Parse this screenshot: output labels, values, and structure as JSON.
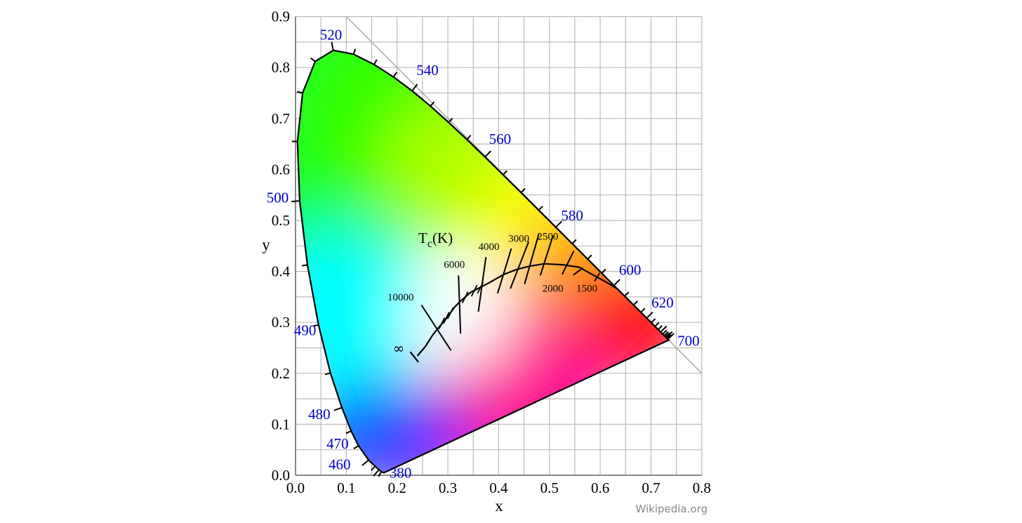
{
  "diagram": {
    "x_axis_label": "x",
    "y_axis_label": "y",
    "x_ticks": [
      "0.0",
      "0.1",
      "0.2",
      "0.3",
      "0.4",
      "0.5",
      "0.6",
      "0.7",
      "0.8"
    ],
    "y_ticks": [
      "0.0",
      "0.1",
      "0.2",
      "0.3",
      "0.4",
      "0.5",
      "0.6",
      "0.7",
      "0.8",
      "0.9"
    ],
    "wavelength_labels": [
      "380",
      "460",
      "470",
      "480",
      "490",
      "500",
      "520",
      "540",
      "560",
      "580",
      "600",
      "620",
      "700"
    ],
    "planckian": {
      "title_main": "T",
      "title_sub": "c",
      "title_unit": "(K)",
      "temperature_labels": [
        "10000",
        "6000",
        "4000",
        "3000",
        "2500",
        "2000",
        "1500"
      ],
      "infinity_label": "∞"
    },
    "credit": "Wikipedia.org"
  },
  "colors": {
    "wavelength_label": "#0000cc",
    "grid": "#bbbbbb",
    "locus_stroke": "#000000"
  }
}
